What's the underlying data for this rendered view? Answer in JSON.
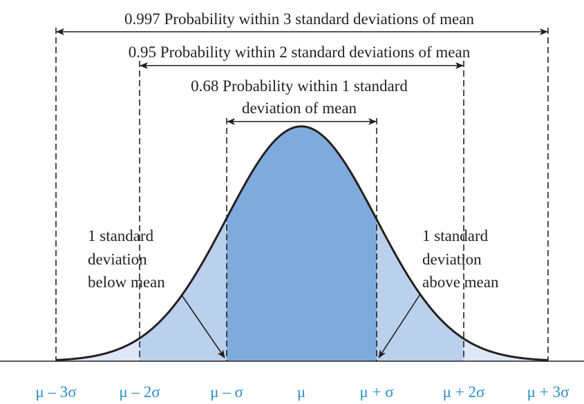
{
  "colors": {
    "inner_fill": "#7fabdc",
    "middle_fill": "#bad0ec",
    "outer_fill": "#dde7f5",
    "tick_label_color": "#2a8fc6",
    "line_color": "#231f20"
  },
  "labels": {
    "three_sigma": "0.997 Probability within 3 standard deviations of mean",
    "two_sigma": "0.95 Probability within 2 standard deviations of mean",
    "one_sigma_line1": "0.68 Probability within 1 standard",
    "one_sigma_line2": "deviation of mean",
    "below_mean": [
      "1 standard",
      "deviation",
      "below mean"
    ],
    "above_mean": [
      "1 standard",
      "deviation",
      "above mean"
    ]
  },
  "axis": {
    "ticks": [
      "μ – 3σ",
      "μ – 2σ",
      "μ – σ",
      "μ",
      "μ + σ",
      "μ + 2σ",
      "μ + 3σ"
    ]
  }
}
